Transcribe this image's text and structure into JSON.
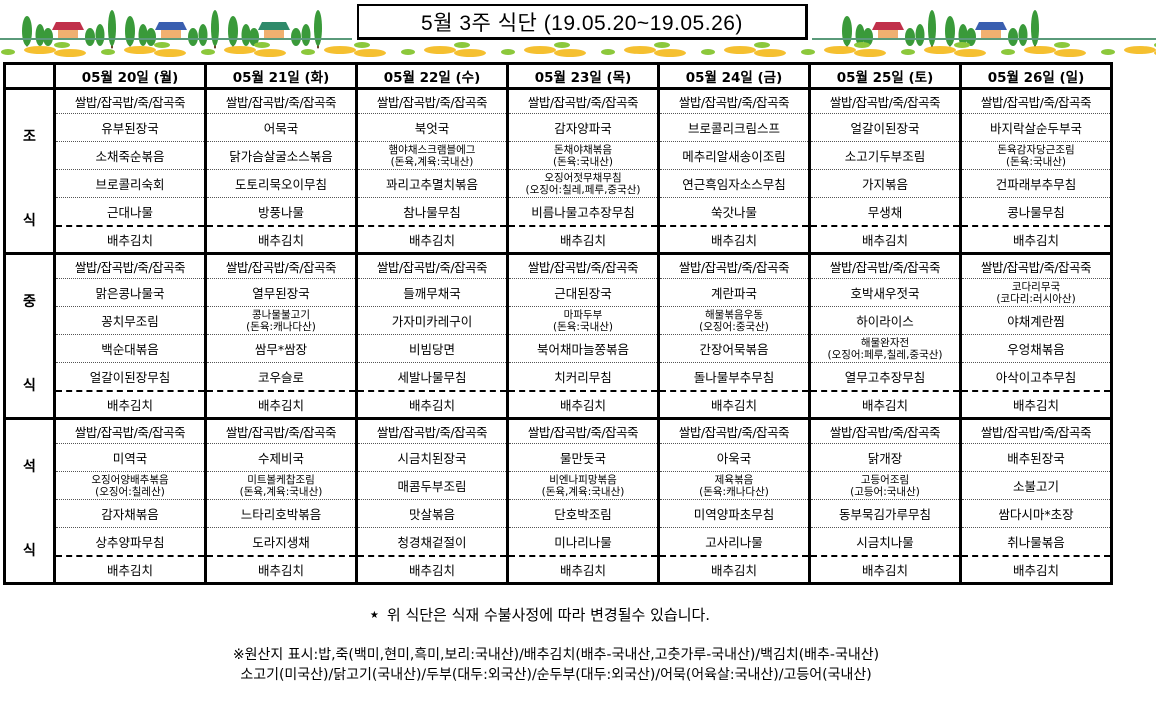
{
  "title": "5월 3주 식단 (19.05.20~19.05.26)",
  "days": [
    "05월 20일 (월)",
    "05월 21일 (화)",
    "05월 22일 (수)",
    "05월 23일 (목)",
    "05월 24일 (금)",
    "05월 25일 (토)",
    "05월 26일 (일)"
  ],
  "rice": "쌀밥/잡곡밥/죽/잡곡죽",
  "kimchi": "배추김치",
  "meals": [
    {
      "label": [
        "조",
        "식"
      ],
      "days": [
        [
          "유부된장국",
          "소채죽순볶음",
          "브로콜리숙회",
          "근대나물"
        ],
        [
          "어묵국",
          "닭가슴살굴소스볶음",
          "도토리묵오이무침",
          "방풍나물"
        ],
        [
          "북엇국",
          "햄야채스크램블에그\n(돈육,계육:국내산)",
          "꽈리고추멸치볶음",
          "참나물무침"
        ],
        [
          "감자양파국",
          "돈채야채볶음\n(돈육:국내산)",
          "오징어젓무채무침\n(오징어:칠레,페루,중국산)",
          "비름나물고추장무침"
        ],
        [
          "브로콜리크림스프",
          "메추리알새송이조림",
          "연근흑임자소스무침",
          "쑥갓나물"
        ],
        [
          "얼갈이된장국",
          "소고기두부조림",
          "가지볶음",
          "무생채"
        ],
        [
          "바지락살순두부국",
          "돈육감자당근조림\n(돈육:국내산)",
          "건파래부추무침",
          "콩나물무침"
        ]
      ]
    },
    {
      "label": [
        "중",
        "식"
      ],
      "days": [
        [
          "맑은콩나물국",
          "꽁치무조림",
          "백순대볶음",
          "얼갈이된장무침"
        ],
        [
          "열무된장국",
          "콩나물불고기\n(돈육:캐나다산)",
          "쌈무*쌈장",
          "코우슬로"
        ],
        [
          "들깨무채국",
          "가자미카레구이",
          "비빔당면",
          "세발나물무침"
        ],
        [
          "근대된장국",
          "마파두부\n(돈육:국내산)",
          "북어채마늘쫑볶음",
          "치커리무침"
        ],
        [
          "계란파국",
          "해물볶음우동\n(오징어:중국산)",
          "간장어묵볶음",
          "돌나물부추무침"
        ],
        [
          "호박새우젓국",
          "하이라이스",
          "해물완자전\n(오징어:페루,칠레,중국산)",
          "열무고추장무침"
        ],
        [
          "코다리무국\n(코다리:러시아산)",
          "야채계란찜",
          "우엉채볶음",
          "아삭이고추무침"
        ]
      ]
    },
    {
      "label": [
        "석",
        "식"
      ],
      "days": [
        [
          "미역국",
          "오징어양배추볶음\n(오징어:칠레산)",
          "감자채볶음",
          "상추양파무침"
        ],
        [
          "수제비국",
          "미트볼케찹조림\n(돈육,계육:국내산)",
          "느타리호박볶음",
          "도라지생채"
        ],
        [
          "시금치된장국",
          "매콤두부조림",
          "맛살볶음",
          "청경채겉절이"
        ],
        [
          "물만둣국",
          "비엔나피망볶음\n(돈육,계육:국내산)",
          "단호박조림",
          "미나리나물"
        ],
        [
          "아욱국",
          "제육볶음\n(돈육:캐나다산)",
          "미역양파초무침",
          "고사리나물"
        ],
        [
          "닭개장",
          "고등어조림\n(고등어:국내산)",
          "동부묵김가루무침",
          "시금치나물"
        ],
        [
          "배추된장국",
          "소불고기",
          "쌈다시마*초장",
          "취나물볶음"
        ]
      ]
    }
  ],
  "notice": {
    "star": "★",
    "text": "위 식단은 식재 수불사정에 따라 변경될수 있습니다."
  },
  "origin": [
    "※원산지 표시:밥,죽(백미,현미,흑미,보리:국내산)/배추김치(배추-국내산,고춧가루-국내산)/백김치(배추-국내산)",
    "소고기(미국산)/닭고기(국내산)/두부(대두:외국산)/순두부(대두:외국산)/어묵(어육살:국내산)/고등어(국내산)"
  ],
  "colors": {
    "roof": [
      "#c0304a",
      "#3a5fb0",
      "#2f8a6a"
    ],
    "tree": "#3a9a3a",
    "flower": "#f5c030",
    "leaf": "#8cc83c"
  }
}
